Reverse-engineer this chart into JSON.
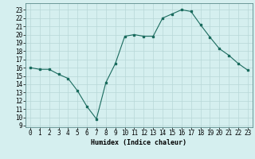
{
  "x": [
    0,
    1,
    2,
    3,
    4,
    5,
    6,
    7,
    8,
    9,
    10,
    11,
    12,
    13,
    14,
    15,
    16,
    17,
    18,
    19,
    20,
    21,
    22,
    23
  ],
  "y": [
    16,
    15.8,
    15.8,
    15.2,
    14.7,
    13.2,
    11.3,
    9.8,
    14.2,
    16.5,
    19.8,
    20.0,
    19.8,
    19.8,
    22.0,
    22.5,
    23.0,
    22.8,
    21.2,
    19.7,
    18.3,
    17.5,
    16.5,
    15.7
  ],
  "line_color": "#1a6b5e",
  "bg_color": "#d5efef",
  "grid_color": "#b8d8d8",
  "xlabel": "Humidex (Indice chaleur)",
  "ylabel_ticks": [
    9,
    10,
    11,
    12,
    13,
    14,
    15,
    16,
    17,
    18,
    19,
    20,
    21,
    22,
    23
  ],
  "xlim": [
    -0.5,
    23.5
  ],
  "ylim": [
    8.8,
    23.8
  ],
  "tick_fontsize": 5.5,
  "xlabel_fontsize": 6.0
}
